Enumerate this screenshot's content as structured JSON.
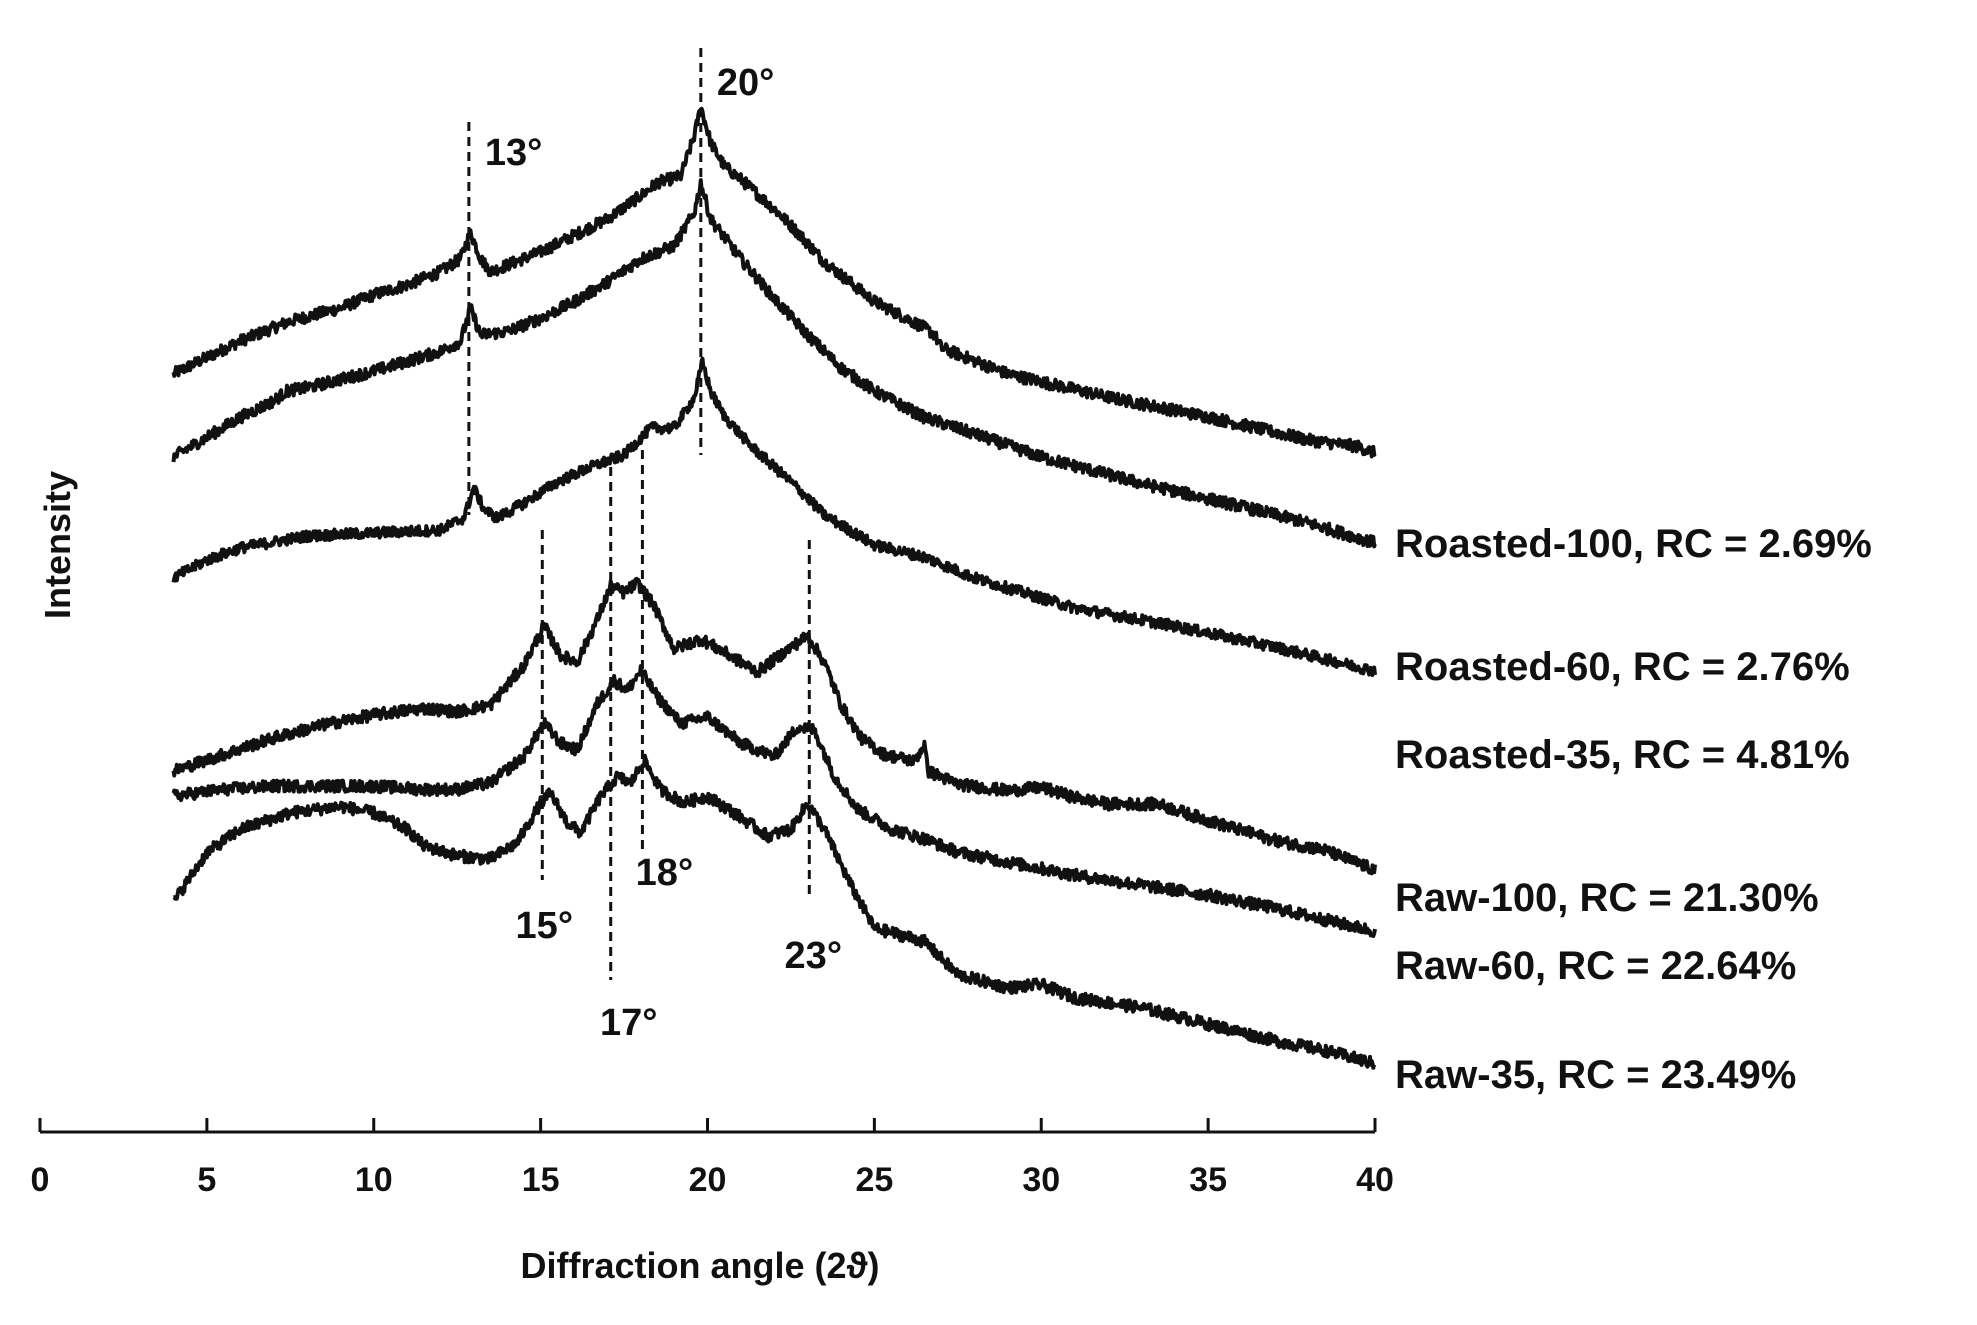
{
  "chart_data": {
    "type": "line",
    "title": "",
    "xlabel": "Diffraction angle (2ϑ)",
    "ylabel": "Intensity",
    "xlim": [
      0,
      40
    ],
    "x_ticks": [
      0,
      5,
      10,
      15,
      20,
      25,
      30,
      35,
      40
    ],
    "grid": false,
    "y_ticks_shown": false,
    "series": [
      {
        "name": "Roasted-100",
        "label": "Roasted-100, RC = 2.69%",
        "profile": [
          [
            4,
            0.0
          ],
          [
            6,
            0.1
          ],
          [
            7.5,
            0.16
          ],
          [
            9,
            0.2
          ],
          [
            10,
            0.24
          ],
          [
            11,
            0.27
          ],
          [
            12,
            0.31
          ],
          [
            12.6,
            0.35
          ],
          [
            12.9,
            0.43
          ],
          [
            13.2,
            0.35
          ],
          [
            13.5,
            0.31
          ],
          [
            14,
            0.33
          ],
          [
            15,
            0.37
          ],
          [
            16,
            0.42
          ],
          [
            17,
            0.47
          ],
          [
            18,
            0.54
          ],
          [
            18.5,
            0.58
          ],
          [
            19.2,
            0.6
          ],
          [
            19.6,
            0.72
          ],
          [
            19.8,
            0.81
          ],
          [
            20.1,
            0.7
          ],
          [
            20.5,
            0.63
          ],
          [
            21,
            0.59
          ],
          [
            22,
            0.5
          ],
          [
            22.6,
            0.44
          ],
          [
            23.5,
            0.34
          ],
          [
            25,
            0.22
          ],
          [
            26.5,
            0.14
          ],
          [
            26.8,
            0.12
          ],
          [
            27,
            0.08
          ],
          [
            29,
            0.0
          ],
          [
            32,
            -0.07
          ],
          [
            35,
            -0.13
          ],
          [
            38,
            -0.2
          ],
          [
            39.5,
            -0.22
          ],
          [
            40,
            -0.24
          ]
        ]
      },
      {
        "name": "Roasted-60",
        "label": "Roasted-60, RC = 2.76%",
        "profile": [
          [
            4,
            0.0
          ],
          [
            6,
            0.12
          ],
          [
            7,
            0.17
          ],
          [
            7.4,
            0.2
          ],
          [
            8,
            0.21
          ],
          [
            10,
            0.26
          ],
          [
            12,
            0.32
          ],
          [
            12.6,
            0.35
          ],
          [
            12.9,
            0.45
          ],
          [
            13.2,
            0.37
          ],
          [
            14,
            0.38
          ],
          [
            15,
            0.42
          ],
          [
            16,
            0.47
          ],
          [
            17,
            0.53
          ],
          [
            18,
            0.6
          ],
          [
            19,
            0.64
          ],
          [
            19.6,
            0.74
          ],
          [
            19.8,
            0.83
          ],
          [
            20.1,
            0.72
          ],
          [
            21,
            0.6
          ],
          [
            22,
            0.48
          ],
          [
            23,
            0.37
          ],
          [
            24,
            0.27
          ],
          [
            25,
            0.2
          ],
          [
            26.5,
            0.12
          ],
          [
            28,
            0.07
          ],
          [
            30,
            0.0
          ],
          [
            33,
            -0.08
          ],
          [
            36,
            -0.15
          ],
          [
            38,
            -0.2
          ],
          [
            40,
            -0.26
          ]
        ]
      },
      {
        "name": "Roasted-35",
        "label": "Roasted-35, RC = 4.81%",
        "profile": [
          [
            4,
            0.0
          ],
          [
            5,
            0.06
          ],
          [
            6,
            0.1
          ],
          [
            8,
            0.14
          ],
          [
            10,
            0.15
          ],
          [
            12,
            0.16
          ],
          [
            12.7,
            0.2
          ],
          [
            13.0,
            0.3
          ],
          [
            13.3,
            0.23
          ],
          [
            13.7,
            0.2
          ],
          [
            14.5,
            0.25
          ],
          [
            15.5,
            0.32
          ],
          [
            16.5,
            0.37
          ],
          [
            17.5,
            0.41
          ],
          [
            18.3,
            0.5
          ],
          [
            19,
            0.5
          ],
          [
            19.6,
            0.6
          ],
          [
            19.85,
            0.72
          ],
          [
            20.1,
            0.62
          ],
          [
            20.5,
            0.54
          ],
          [
            21.3,
            0.44
          ],
          [
            22.3,
            0.34
          ],
          [
            22.7,
            0.3
          ],
          [
            23.5,
            0.21
          ],
          [
            25,
            0.11
          ],
          [
            26.5,
            0.07
          ],
          [
            28,
            0.0
          ],
          [
            31,
            -0.1
          ],
          [
            34,
            -0.16
          ],
          [
            37,
            -0.23
          ],
          [
            40,
            -0.31
          ]
        ]
      },
      {
        "name": "Raw-100",
        "label": "Raw-100, RC = 21.30%",
        "profile": [
          [
            4,
            0.0
          ],
          [
            5.5,
            0.05
          ],
          [
            7,
            0.1
          ],
          [
            8.5,
            0.14
          ],
          [
            10,
            0.17
          ],
          [
            11.5,
            0.19
          ],
          [
            12.5,
            0.18
          ],
          [
            13.5,
            0.2
          ],
          [
            14.5,
            0.32
          ],
          [
            15.1,
            0.44
          ],
          [
            15.6,
            0.35
          ],
          [
            16.1,
            0.33
          ],
          [
            16.7,
            0.46
          ],
          [
            17.1,
            0.56
          ],
          [
            17.5,
            0.54
          ],
          [
            17.9,
            0.57
          ],
          [
            18.4,
            0.5
          ],
          [
            19,
            0.37
          ],
          [
            19.8,
            0.4
          ],
          [
            20.5,
            0.36
          ],
          [
            21.5,
            0.3
          ],
          [
            22.3,
            0.36
          ],
          [
            23.0,
            0.41
          ],
          [
            23.5,
            0.33
          ],
          [
            24,
            0.2
          ],
          [
            24.6,
            0.1
          ],
          [
            25.3,
            0.05
          ],
          [
            26.2,
            0.03
          ],
          [
            26.5,
            0.08
          ],
          [
            26.6,
            0.0
          ],
          [
            27.5,
            -0.04
          ],
          [
            29,
            -0.06
          ],
          [
            30,
            -0.05
          ],
          [
            31,
            -0.08
          ],
          [
            32,
            -0.1
          ],
          [
            33.5,
            -0.1
          ],
          [
            35,
            -0.15
          ],
          [
            37,
            -0.21
          ],
          [
            38.5,
            -0.24
          ],
          [
            40,
            -0.3
          ]
        ]
      },
      {
        "name": "Raw-60",
        "label": "Raw-60, RC = 22.64%",
        "profile": [
          [
            4,
            0.0
          ],
          [
            5.5,
            0.02
          ],
          [
            7,
            0.03
          ],
          [
            8.5,
            0.03
          ],
          [
            10,
            0.03
          ],
          [
            11.5,
            0.02
          ],
          [
            12.5,
            0.02
          ],
          [
            13.5,
            0.04
          ],
          [
            14.5,
            0.12
          ],
          [
            15.1,
            0.22
          ],
          [
            15.6,
            0.16
          ],
          [
            16.1,
            0.14
          ],
          [
            16.7,
            0.28
          ],
          [
            17.2,
            0.35
          ],
          [
            17.6,
            0.32
          ],
          [
            18.0,
            0.38
          ],
          [
            18.5,
            0.3
          ],
          [
            19.2,
            0.22
          ],
          [
            20,
            0.24
          ],
          [
            21,
            0.16
          ],
          [
            22,
            0.12
          ],
          [
            22.7,
            0.21
          ],
          [
            23.2,
            0.2
          ],
          [
            23.8,
            0.06
          ],
          [
            24.5,
            -0.04
          ],
          [
            25.5,
            -0.1
          ],
          [
            26.5,
            -0.13
          ],
          [
            27.5,
            -0.17
          ],
          [
            29,
            -0.2
          ],
          [
            31,
            -0.24
          ],
          [
            33,
            -0.27
          ],
          [
            35,
            -0.3
          ],
          [
            37,
            -0.34
          ],
          [
            40,
            -0.41
          ]
        ]
      },
      {
        "name": "Raw-35",
        "label": "Raw-35, RC = 23.49%",
        "profile": [
          [
            4,
            0.0
          ],
          [
            5,
            0.15
          ],
          [
            6,
            0.22
          ],
          [
            7.5,
            0.27
          ],
          [
            9,
            0.29
          ],
          [
            10,
            0.27
          ],
          [
            11,
            0.22
          ],
          [
            11.5,
            0.17
          ],
          [
            12.5,
            0.14
          ],
          [
            13.5,
            0.13
          ],
          [
            14.3,
            0.18
          ],
          [
            15.0,
            0.3
          ],
          [
            15.3,
            0.33
          ],
          [
            15.8,
            0.24
          ],
          [
            16.2,
            0.21
          ],
          [
            16.8,
            0.32
          ],
          [
            17.3,
            0.38
          ],
          [
            17.7,
            0.36
          ],
          [
            18.1,
            0.43
          ],
          [
            18.6,
            0.34
          ],
          [
            19.3,
            0.3
          ],
          [
            20,
            0.32
          ],
          [
            20.8,
            0.27
          ],
          [
            21.8,
            0.2
          ],
          [
            22.5,
            0.22
          ],
          [
            23.0,
            0.3
          ],
          [
            23.5,
            0.22
          ],
          [
            24.3,
            0.05
          ],
          [
            25,
            -0.08
          ],
          [
            25.8,
            -0.1
          ],
          [
            26.5,
            -0.12
          ],
          [
            27.5,
            -0.22
          ],
          [
            29,
            -0.26
          ],
          [
            30,
            -0.25
          ],
          [
            31,
            -0.29
          ],
          [
            33,
            -0.32
          ],
          [
            35,
            -0.37
          ],
          [
            37,
            -0.42
          ],
          [
            38.5,
            -0.45
          ],
          [
            40,
            -0.49
          ]
        ]
      }
    ],
    "peak_annotations": [
      {
        "label": "13°",
        "x": 13
      },
      {
        "label": "20°",
        "x": 20
      },
      {
        "label": "15°",
        "x": 15
      },
      {
        "label": "17°",
        "x": 17
      },
      {
        "label": "18°",
        "x": 18
      },
      {
        "label": "23°",
        "x": 23
      }
    ]
  }
}
